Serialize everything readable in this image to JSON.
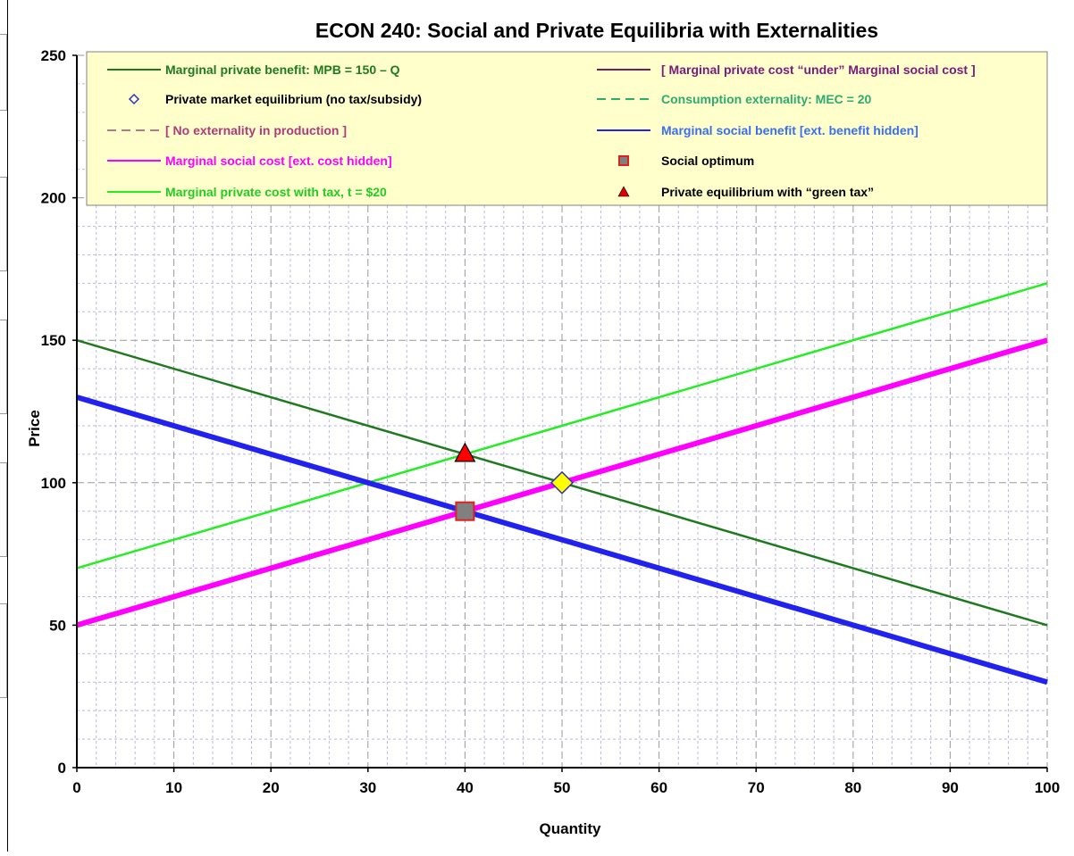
{
  "chart_data": {
    "type": "line",
    "title": "ECON 240: Social and Private Equilibria with Externalities",
    "xlabel": "Quantity",
    "ylabel": "Price",
    "xlim": [
      0,
      100
    ],
    "ylim": [
      0,
      250
    ],
    "x_ticks": [
      0,
      10,
      20,
      30,
      40,
      50,
      60,
      70,
      80,
      90,
      100
    ],
    "y_ticks": [
      0,
      50,
      100,
      150,
      200,
      250
    ],
    "grid": true,
    "legend_position": "top",
    "series": [
      {
        "name": "Marginal private benefit: MPB = 150 – Q",
        "color": "#1f7a1f",
        "style": "solid",
        "width": 2.5,
        "x": [
          0,
          100
        ],
        "y": [
          150,
          50
        ]
      },
      {
        "name": "[ Marginal private cost “under” Marginal social cost ]",
        "color": "#7a1a5a",
        "style": "solid",
        "width": 2,
        "x": [
          0,
          100
        ],
        "y": [
          50,
          150
        ]
      },
      {
        "name": "Consumption externality: MEC = 20",
        "color": "#2eab6f",
        "style": "dashed",
        "width": 2,
        "x": [],
        "y": []
      },
      {
        "name": "[ No externality in production ]",
        "color": "#b07a8a",
        "style": "dashed",
        "width": 2,
        "x": [],
        "y": []
      },
      {
        "name": "Marginal social benefit [ext. benefit hidden]",
        "color": "#2222ee",
        "style": "solid",
        "width": 6,
        "x": [
          0,
          100
        ],
        "y": [
          130,
          30
        ]
      },
      {
        "name": "Marginal social cost [ext. cost hidden]",
        "color": "#ff00ff",
        "style": "solid",
        "width": 6,
        "x": [
          0,
          100
        ],
        "y": [
          50,
          150
        ]
      },
      {
        "name": "Marginal private cost with tax, t = $20",
        "color": "#22ee22",
        "style": "solid",
        "width": 2.5,
        "x": [
          0,
          100
        ],
        "y": [
          70,
          170
        ]
      }
    ],
    "points": [
      {
        "name": "Private market equilibrium (no tax/subsidy)",
        "x": 50,
        "y": 100,
        "marker": "diamond",
        "fill": "#ffff00",
        "stroke": "#3333aa"
      },
      {
        "name": "Social optimum",
        "x": 40,
        "y": 90,
        "marker": "square",
        "fill": "#808080",
        "stroke": "#dd2222"
      },
      {
        "name": "Private equilibrium with “green tax”",
        "x": 40,
        "y": 110,
        "marker": "triangle",
        "fill": "#ff0000",
        "stroke": "#000000"
      }
    ],
    "legend": [
      {
        "label": "Marginal private benefit: MPB = 150 – Q",
        "text_color": "#1f7a1f",
        "symbol": "line",
        "color": "#1f7a1f"
      },
      {
        "label": "[ Marginal private cost “under” Marginal social cost ]",
        "text_color": "#7a1a7a",
        "symbol": "line",
        "color": "#7a1a5a"
      },
      {
        "label": "Private market equilibrium (no tax/subsidy)",
        "text_color": "#000000",
        "symbol": "diamond",
        "color": "#3333aa"
      },
      {
        "label": "Consumption externality: MEC = 20",
        "text_color": "#2eab6f",
        "symbol": "dash",
        "color": "#2eab6f"
      },
      {
        "label": "[ No externality in production ]",
        "text_color": "#b03a7a",
        "symbol": "dash",
        "color": "#b07a8a"
      },
      {
        "label": "Marginal social benefit [ext. benefit hidden]",
        "text_color": "#3a6ff0",
        "symbol": "line",
        "color": "#2222ee"
      },
      {
        "label": "Marginal social cost [ext. cost hidden]",
        "text_color": "#ff00ff",
        "symbol": "line",
        "color": "#ff00ff"
      },
      {
        "label": "Social optimum",
        "text_color": "#000000",
        "symbol": "square",
        "color": "#dd2222"
      },
      {
        "label": "Marginal private cost with tax, t = $20",
        "text_color": "#22cc22",
        "symbol": "line",
        "color": "#22ee22"
      },
      {
        "label": "Private equilibrium with “green tax”",
        "text_color": "#000000",
        "symbol": "triangle",
        "color": "#dd0000"
      }
    ],
    "colors": {
      "legend_background": "#ffffcc",
      "grid_major": "#9a9a9a",
      "grid_minor": "#b8b8e0"
    }
  }
}
